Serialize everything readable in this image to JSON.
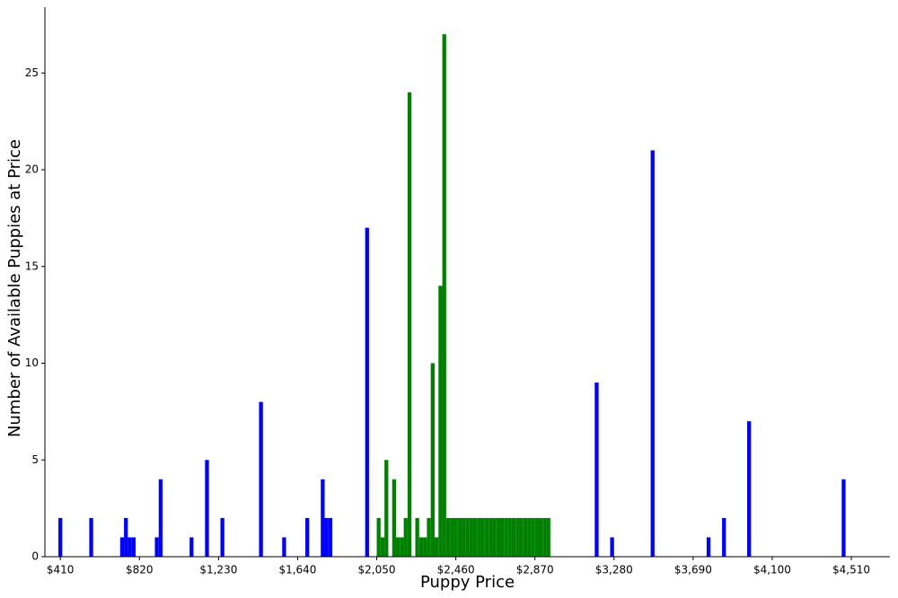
{
  "chart_data": {
    "type": "bar",
    "title": "",
    "xlabel": "Puppy Price",
    "ylabel": "Number of Available Puppies at Price",
    "xlim": [
      330,
      4710
    ],
    "ylim": [
      0,
      28.4
    ],
    "grid": false,
    "xticks": [
      410,
      820,
      1230,
      1640,
      2050,
      2460,
      2870,
      3280,
      3690,
      4100,
      4510
    ],
    "xtick_labels": [
      "$410",
      "$820",
      "$1,230",
      "$1,640",
      "$2,050",
      "$2,460",
      "$2,870",
      "$3,280",
      "$3,690",
      "$4,100",
      "$4,510"
    ],
    "yticks": [
      0,
      5,
      10,
      15,
      20,
      25
    ],
    "ytick_labels": [
      "0",
      "5",
      "10",
      "15",
      "20",
      "25"
    ],
    "bin_width": 20,
    "colors": {
      "blue": "#0000ff",
      "green": "#008000"
    },
    "series": [
      {
        "color": "#0000ff",
        "x": [
          410,
          570,
          730,
          750,
          770,
          790,
          910,
          930,
          1090,
          1170,
          1250,
          1450,
          1570,
          1690,
          1770,
          1790,
          1810,
          2000,
          3190,
          3270,
          3480,
          3770,
          3850,
          3980,
          4470
        ],
        "values": [
          2,
          2,
          1,
          2,
          1,
          1,
          1,
          4,
          1,
          5,
          2,
          8,
          1,
          2,
          4,
          2,
          2,
          17,
          9,
          1,
          21,
          1,
          2,
          7,
          4
        ]
      },
      {
        "color": "#008000",
        "x": [
          2060,
          2080,
          2100,
          2140,
          2160,
          2180,
          2200,
          2220,
          2260,
          2280,
          2300,
          2320,
          2340,
          2360,
          2380,
          2400,
          2420,
          2440,
          2460,
          2480,
          2500,
          2520,
          2540,
          2560,
          2580,
          2600,
          2620,
          2640,
          2660,
          2680,
          2700,
          2720,
          2740,
          2760,
          2780,
          2800,
          2820,
          2840,
          2860,
          2880,
          2900,
          2920,
          2940
        ],
        "values": [
          2,
          1,
          5,
          4,
          1,
          1,
          2,
          24,
          2,
          1,
          1,
          2,
          10,
          1,
          14,
          27,
          2,
          2,
          2,
          2,
          2,
          2,
          2,
          2,
          2,
          2,
          2,
          2,
          2,
          2,
          2,
          2,
          2,
          2,
          2,
          2,
          2,
          2,
          2,
          2,
          2,
          2,
          2
        ]
      }
    ]
  }
}
